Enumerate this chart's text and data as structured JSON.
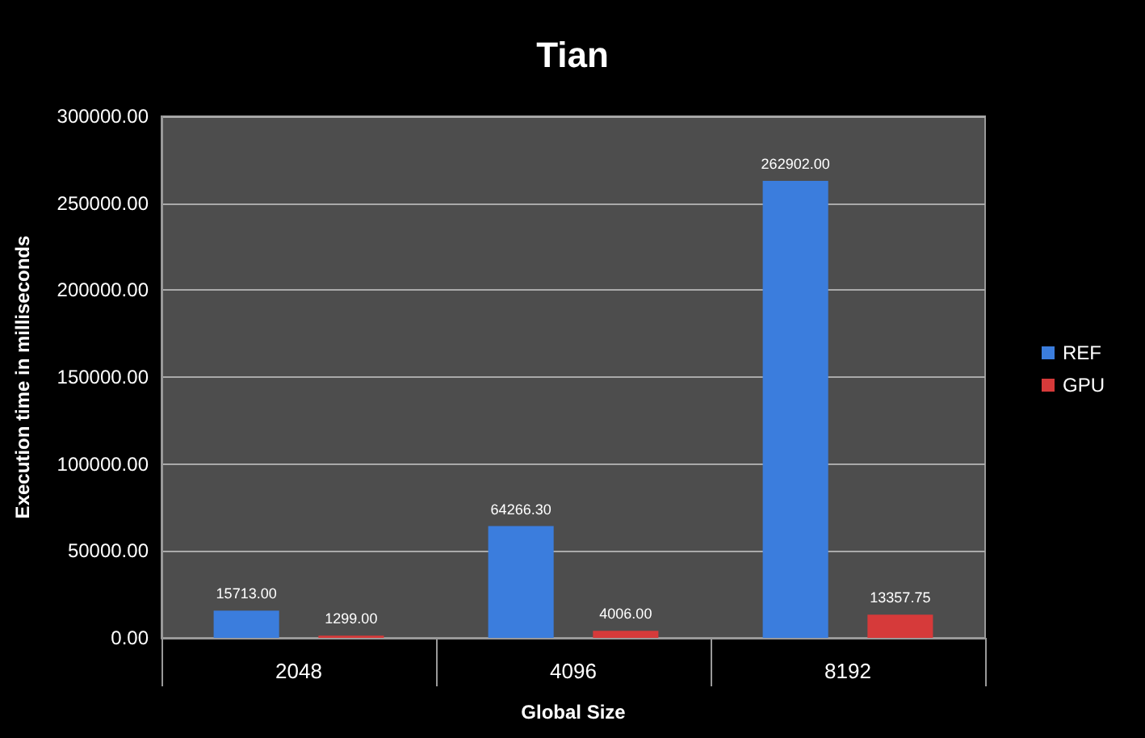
{
  "chart_data": {
    "type": "bar",
    "title": "Tian",
    "xlabel": "Global Size",
    "ylabel": "Execution time in milliseconds",
    "categories": [
      "2048",
      "4096",
      "8192"
    ],
    "series": [
      {
        "name": "REF",
        "color": "#3b7ddd",
        "values": [
          15713.0,
          64266.3,
          262902.0
        ],
        "value_labels": [
          "15713.00",
          "64266.30",
          "262902.00"
        ]
      },
      {
        "name": "GPU",
        "color": "#d63a3a",
        "values": [
          1299.0,
          4006.0,
          13357.75
        ],
        "value_labels": [
          "1299.00",
          "4006.00",
          "13357.75"
        ]
      }
    ],
    "ylim": [
      0,
      300000
    ],
    "yticks": [
      {
        "value": 0,
        "label": "0.00"
      },
      {
        "value": 50000,
        "label": "50000.00"
      },
      {
        "value": 100000,
        "label": "100000.00"
      },
      {
        "value": 150000,
        "label": "150000.00"
      },
      {
        "value": 200000,
        "label": "200000.00"
      },
      {
        "value": 250000,
        "label": "250000.00"
      },
      {
        "value": 300000,
        "label": "300000.00"
      }
    ],
    "grid": "y",
    "legend": "right"
  }
}
